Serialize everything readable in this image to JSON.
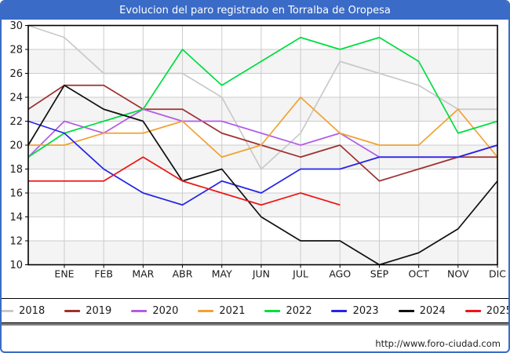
{
  "title": "Evolucion del paro registrado en Torralba de Oropesa",
  "footer": {
    "url": "http://www.foro-ciudad.com"
  },
  "colors": {
    "frame_blue": "#3a6bc7",
    "grid": "#cccccc",
    "band": "#f4f4f4",
    "axis": "#000000",
    "label_text": "#1a1a1a"
  },
  "chart_data": {
    "type": "line",
    "title": "Evolucion del paro registrado en Torralba de Oropesa",
    "xlabel": "",
    "ylabel": "",
    "ylim": [
      10,
      30
    ],
    "ytick_step": 2,
    "grid": true,
    "legend_position": "bottom",
    "categories": [
      "ENE",
      "FEB",
      "MAR",
      "ABR",
      "MAY",
      "JUN",
      "JUL",
      "AGO",
      "SEP",
      "OCT",
      "NOV",
      "DIC"
    ],
    "note_start_point": "each line begins at the left axis with the previous year's December value",
    "series": [
      {
        "name": "2018",
        "color": "#c9c9c9",
        "start": 30,
        "values": [
          29,
          26,
          26,
          26,
          24,
          18,
          21,
          27,
          26,
          25,
          23,
          23
        ]
      },
      {
        "name": "2019",
        "color": "#a03030",
        "start": 23,
        "values": [
          25,
          25,
          23,
          23,
          21,
          20,
          19,
          20,
          17,
          18,
          19,
          19
        ]
      },
      {
        "name": "2020",
        "color": "#b35ce8",
        "start": 19,
        "values": [
          22,
          21,
          23,
          22,
          22,
          21,
          20,
          21,
          19,
          19,
          19,
          20
        ]
      },
      {
        "name": "2021",
        "color": "#f0a232",
        "start": 20,
        "values": [
          20,
          21,
          21,
          22,
          19,
          20,
          24,
          21,
          20,
          20,
          23,
          19
        ]
      },
      {
        "name": "2022",
        "color": "#00dd40",
        "start": 19,
        "values": [
          21,
          22,
          23,
          28,
          25,
          27,
          29,
          28,
          29,
          27,
          21,
          22
        ]
      },
      {
        "name": "2023",
        "color": "#2424e8",
        "start": 22,
        "values": [
          21,
          18,
          16,
          15,
          17,
          16,
          18,
          18,
          19,
          19,
          19,
          20
        ]
      },
      {
        "name": "2024",
        "color": "#111111",
        "start": 20,
        "values": [
          25,
          23,
          22,
          17,
          18,
          14,
          12,
          12,
          10,
          11,
          13,
          17
        ]
      },
      {
        "name": "2025",
        "color": "#ee1515",
        "start": 17,
        "values": [
          17,
          17,
          19,
          17,
          16,
          15,
          16,
          15,
          null,
          null,
          null,
          null
        ]
      }
    ]
  }
}
